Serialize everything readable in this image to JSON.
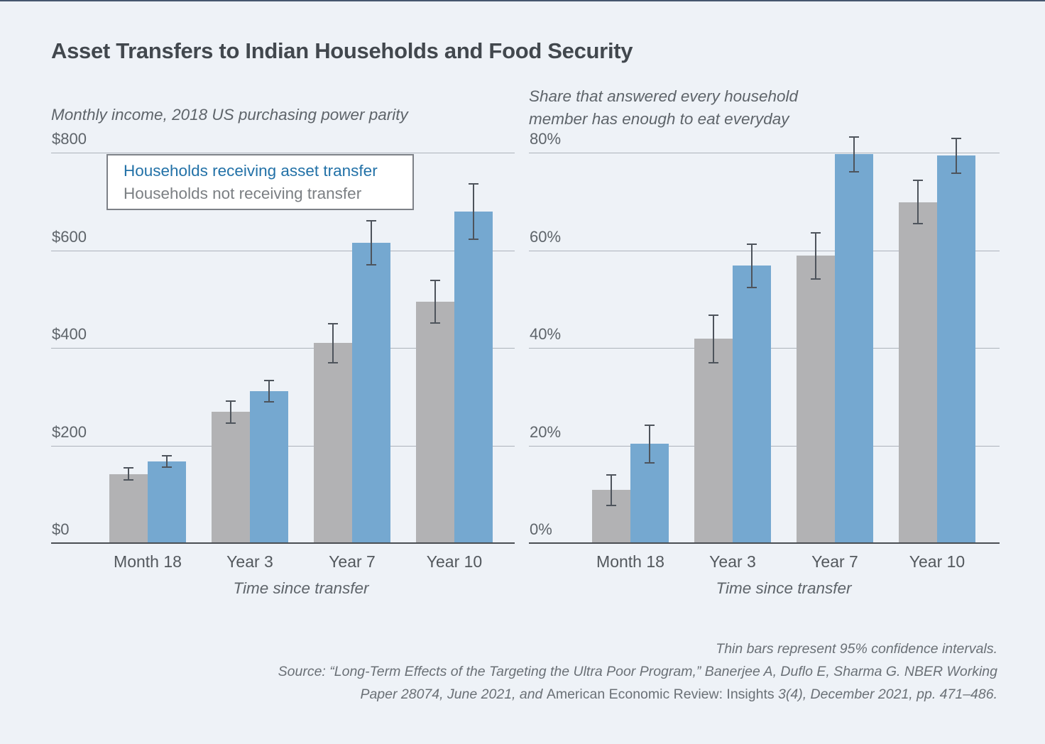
{
  "figure": {
    "title": "Asset Transfers to Indian Households and Food Security",
    "background_color": "#eef2f7",
    "bar_color_treatment": "#75a8d0",
    "bar_color_control": "#b2b2b4",
    "gridline_color": "#adb3bb",
    "error_bar_color": "#4e545c"
  },
  "legend": {
    "treatment_label": "Households receiving asset transfer",
    "control_label": "Households not receiving transfer",
    "treatment_text_color": "#2271a7",
    "control_text_color": "#7b7f83"
  },
  "footer": {
    "note": "Thin bars represent 95% confidence intervals.",
    "source_line1": "Source: “Long-Term Effects of the Targeting the Ultra Poor Program,” Banerjee A, Duflo E, Sharma G. NBER Working",
    "source_line2_pre": "Paper 28074, June 2021, and ",
    "source_line2_journal": "American Economic Review: Insights",
    "source_line2_post": " 3(4), December 2021, pp. 471–486."
  },
  "chart_data": [
    {
      "type": "bar",
      "title_lines": [
        "Monthly income, 2018 US purchasing power parity"
      ],
      "xlabel": "Time since transfer",
      "categories": [
        "Month 18",
        "Year 3",
        "Year 7",
        "Year 10"
      ],
      "ylim": [
        0,
        800
      ],
      "grid": true,
      "yticks": [
        {
          "value": 0,
          "label": "$0"
        },
        {
          "value": 200,
          "label": "$200"
        },
        {
          "value": 400,
          "label": "$400"
        },
        {
          "value": 600,
          "label": "$600"
        },
        {
          "value": 800,
          "label": "$800"
        }
      ],
      "series": [
        {
          "name": "Households not receiving transfer",
          "color": "#b2b2b4",
          "values": [
            143,
            270,
            411,
            496
          ],
          "ci95": [
            14,
            24,
            42,
            45
          ]
        },
        {
          "name": "Households receiving asset transfer",
          "color": "#75a8d0",
          "values": [
            169,
            313,
            617,
            681
          ],
          "ci95": [
            13,
            23,
            47,
            58
          ]
        }
      ]
    },
    {
      "type": "bar",
      "title_lines": [
        "Share that answered every household",
        "member has enough to eat everyday"
      ],
      "xlabel": "Time since transfer",
      "categories": [
        "Month 18",
        "Year 3",
        "Year 7",
        "Year 10"
      ],
      "ylim": [
        0,
        80
      ],
      "grid": true,
      "yticks": [
        {
          "value": 0,
          "label": "0%"
        },
        {
          "value": 20,
          "label": "20%"
        },
        {
          "value": 40,
          "label": "40%"
        },
        {
          "value": 60,
          "label": "60%"
        },
        {
          "value": 80,
          "label": "80%"
        }
      ],
      "series": [
        {
          "name": "Households not receiving transfer",
          "color": "#b2b2b4",
          "values": [
            11,
            42,
            59,
            70
          ],
          "ci95": [
            3.3,
            5,
            4.9,
            4.6
          ]
        },
        {
          "name": "Households receiving asset transfer",
          "color": "#75a8d0",
          "values": [
            20.5,
            57,
            79.8,
            79.5
          ],
          "ci95": [
            4,
            4.6,
            3.7,
            3.7
          ]
        }
      ]
    }
  ]
}
